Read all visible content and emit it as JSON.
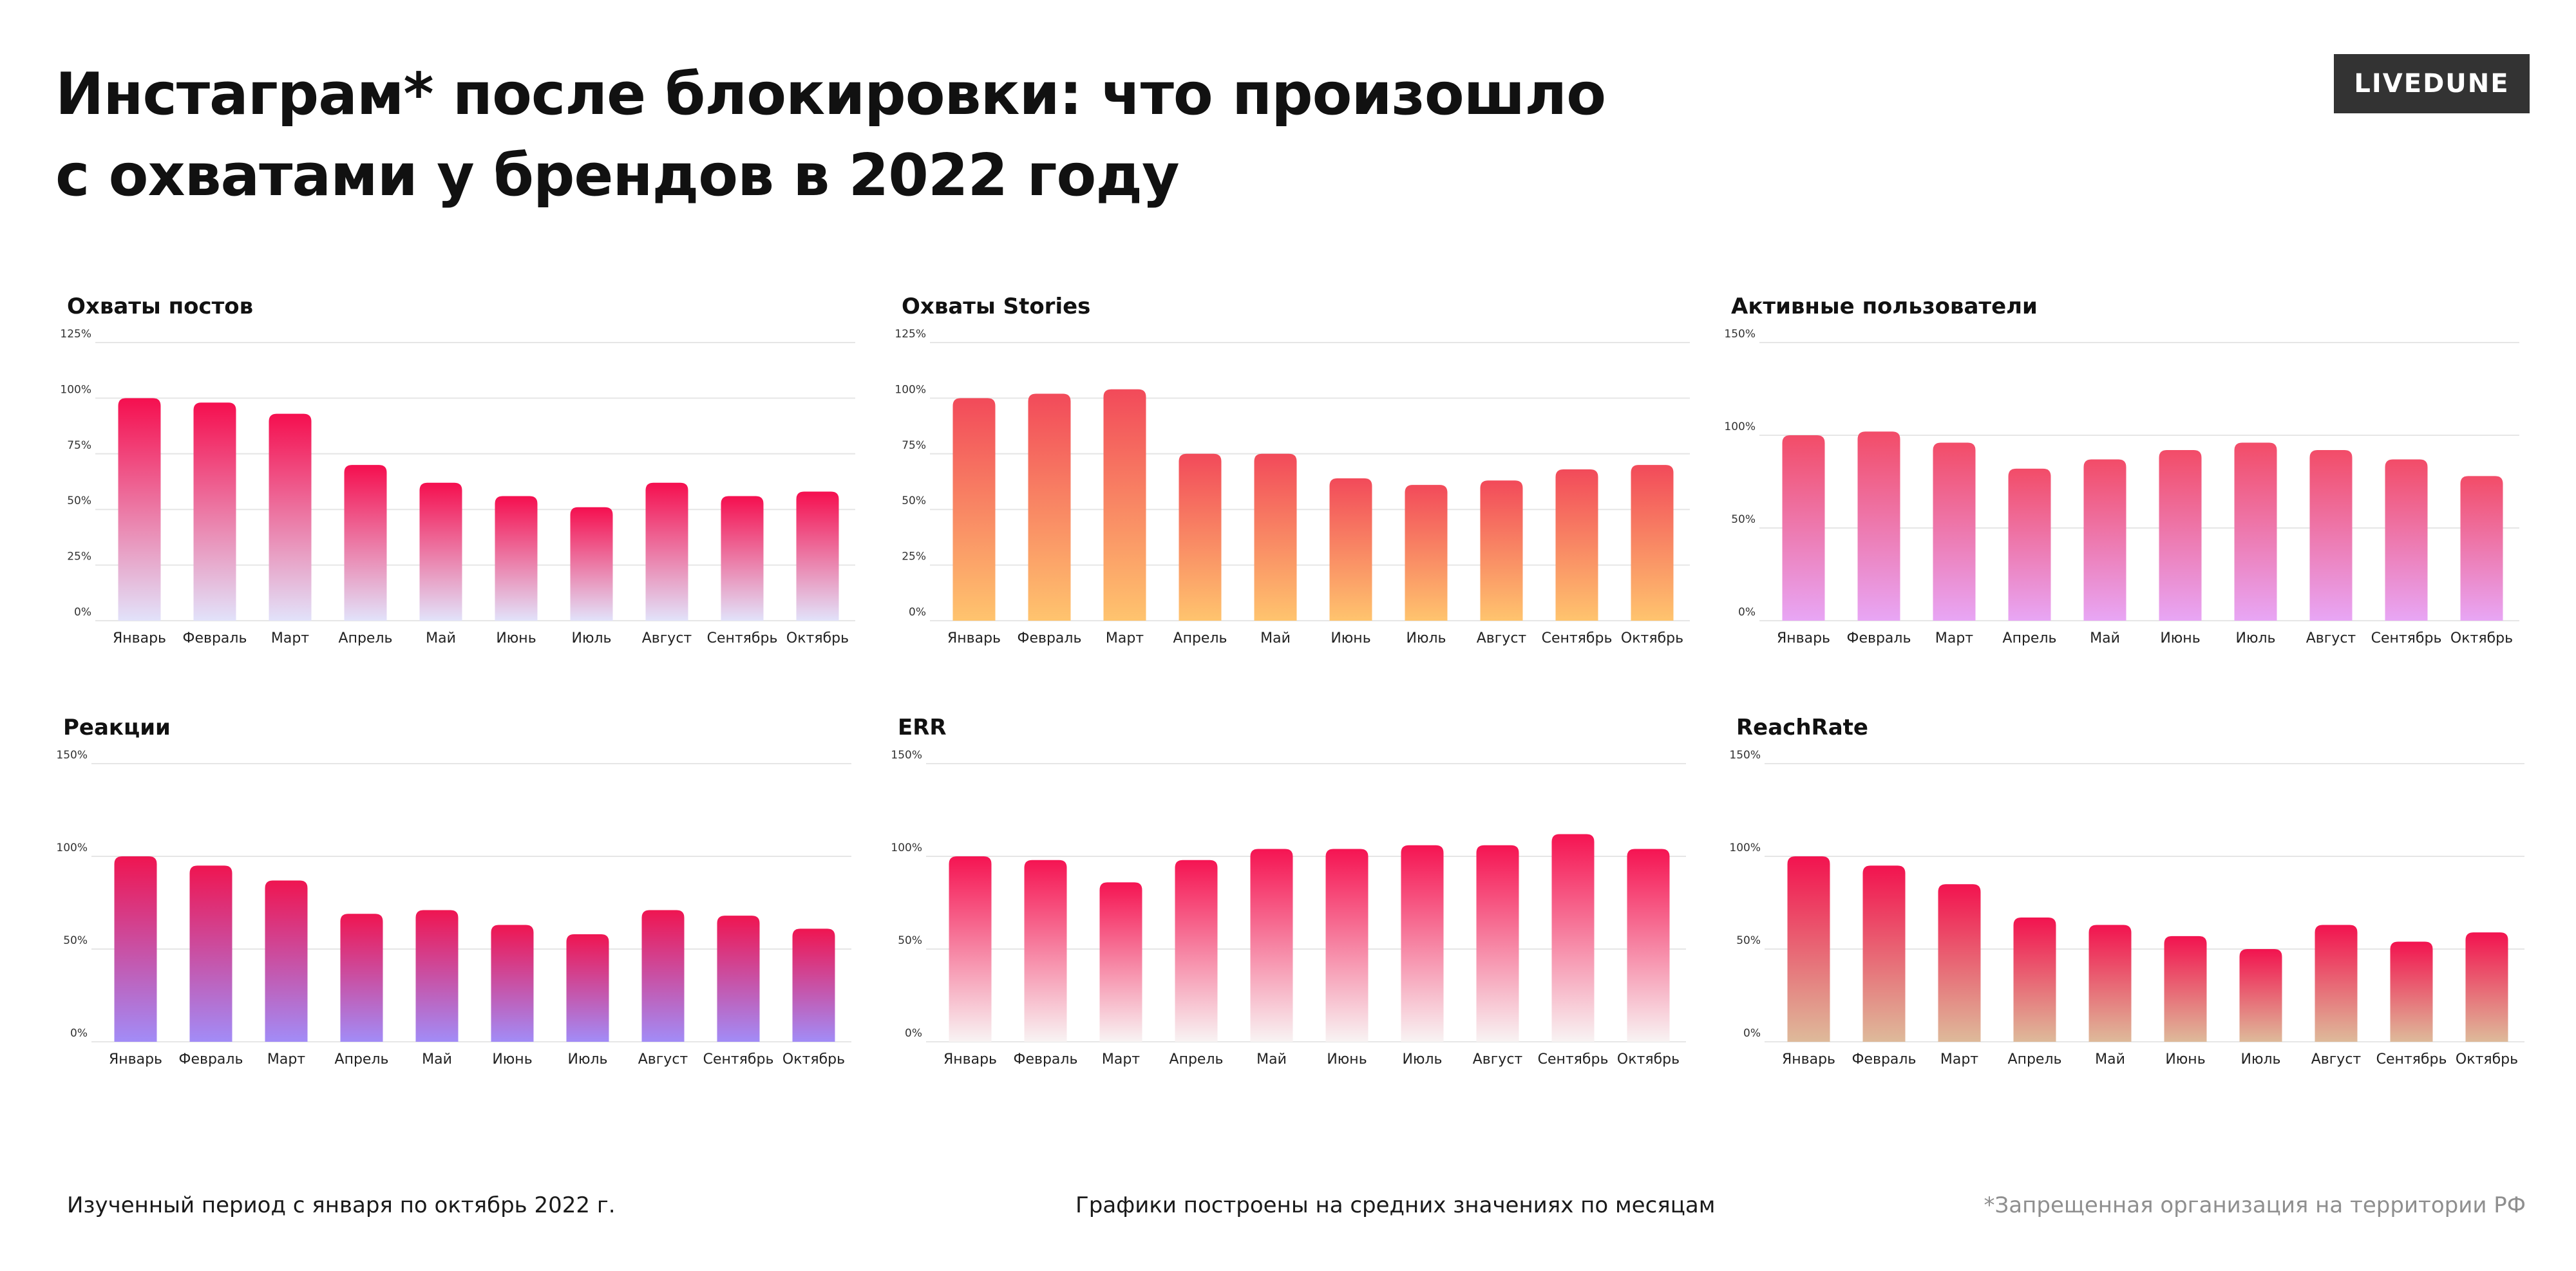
{
  "header": {
    "title_line1": "Инстаграм* после блокировки: что произошло",
    "title_line2": "с охватами у брендов в 2022 году",
    "logo": "LIVEDUNE"
  },
  "footer": {
    "left": "Изученный период с января по октябрь 2022 г.",
    "center": "Графики построены на средних значениях по месяцам",
    "right": "*Запрещенная организация на территории РФ"
  },
  "colors": {
    "grid": "#e6e6e6",
    "posts": [
      "#f50f4f",
      "#e2e2fa"
    ],
    "stories": [
      "#f24a5a",
      "#ffc46e"
    ],
    "active_users": [
      "#f24c68",
      "#e8a6f5"
    ],
    "reactions": [
      "#ef1551",
      "#a28cf7"
    ],
    "err": [
      "#f51452",
      "#f8f3f3"
    ],
    "reachrate": [
      "#f2134f",
      "#deba9a"
    ]
  },
  "chart_data": [
    {
      "id": "posts",
      "type": "bar",
      "title": "Охваты постов",
      "categories": [
        "Январь",
        "Февраль",
        "Март",
        "Апрель",
        "Май",
        "Июнь",
        "Июль",
        "Август",
        "Сентябрь",
        "Октябрь"
      ],
      "values": [
        100,
        98,
        93,
        70,
        62,
        56,
        51,
        62,
        56,
        58
      ],
      "ylim": [
        0,
        125
      ],
      "yticks": [
        0,
        25,
        50,
        75,
        100,
        125
      ],
      "tick_suffix": "%",
      "grid": true
    },
    {
      "id": "stories",
      "type": "bar",
      "title": "Охваты Stories",
      "categories": [
        "Январь",
        "Февраль",
        "Март",
        "Апрель",
        "Май",
        "Июнь",
        "Июль",
        "Август",
        "Сентябрь",
        "Октябрь"
      ],
      "values": [
        100,
        102,
        104,
        75,
        75,
        64,
        61,
        63,
        68,
        70
      ],
      "ylim": [
        0,
        125
      ],
      "yticks": [
        0,
        25,
        50,
        75,
        100,
        125
      ],
      "tick_suffix": "%",
      "grid": true
    },
    {
      "id": "active_users",
      "type": "bar",
      "title": "Активные пользователи",
      "categories": [
        "Январь",
        "Февраль",
        "Март",
        "Апрель",
        "Май",
        "Июнь",
        "Июль",
        "Август",
        "Сентябрь",
        "Октябрь"
      ],
      "values": [
        100,
        102,
        96,
        82,
        87,
        92,
        96,
        92,
        87,
        78
      ],
      "ylim": [
        0,
        150
      ],
      "yticks": [
        0,
        50,
        100,
        150
      ],
      "tick_suffix": "%",
      "grid": true
    },
    {
      "id": "reactions",
      "type": "bar",
      "title": "Реакции",
      "categories": [
        "Январь",
        "Февраль",
        "Март",
        "Апрель",
        "Май",
        "Июнь",
        "Июль",
        "Август",
        "Сентябрь",
        "Октябрь"
      ],
      "values": [
        100,
        95,
        87,
        69,
        71,
        63,
        58,
        71,
        68,
        61
      ],
      "ylim": [
        0,
        150
      ],
      "yticks": [
        0,
        50,
        100,
        150
      ],
      "tick_suffix": "%",
      "grid": true
    },
    {
      "id": "err",
      "type": "bar",
      "title": "ERR",
      "categories": [
        "Январь",
        "Февраль",
        "Март",
        "Апрель",
        "Май",
        "Июнь",
        "Июль",
        "Август",
        "Сентябрь",
        "Октябрь"
      ],
      "values": [
        100,
        98,
        86,
        98,
        104,
        104,
        106,
        106,
        112,
        104
      ],
      "ylim": [
        0,
        150
      ],
      "yticks": [
        0,
        50,
        100,
        150
      ],
      "tick_suffix": "%",
      "grid": true
    },
    {
      "id": "reachrate",
      "type": "bar",
      "title": "ReachRate",
      "categories": [
        "Январь",
        "Февраль",
        "Март",
        "Апрель",
        "Май",
        "Июнь",
        "Июль",
        "Август",
        "Сентябрь",
        "Октябрь"
      ],
      "values": [
        100,
        95,
        85,
        67,
        63,
        57,
        50,
        63,
        54,
        59
      ],
      "ylim": [
        0,
        150
      ],
      "yticks": [
        0,
        50,
        100,
        150
      ],
      "tick_suffix": "%",
      "grid": true
    }
  ]
}
